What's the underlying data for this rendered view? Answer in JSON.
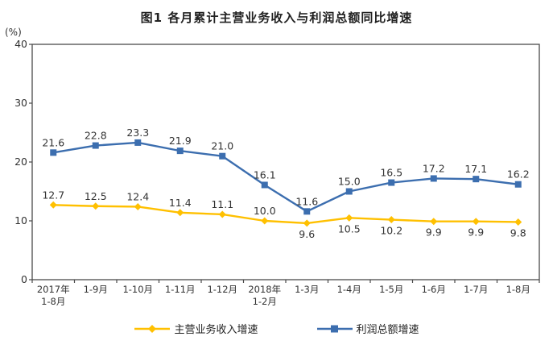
{
  "title": "图1  各月累计主营业务收入与利润总额同比增速",
  "chart_data": {
    "type": "line",
    "title": "图1  各月累计主营业务收入与利润总额同比增速",
    "ylabel": "(%)",
    "xlabel": "",
    "ylim": [
      0,
      40
    ],
    "yticks": [
      0,
      10,
      20,
      30,
      40
    ],
    "grid": false,
    "legend_position": "bottom",
    "axis_color": "#4a4a4a",
    "label_color": "#333333",
    "categories": [
      "2017年\n1-8月",
      "1-9月",
      "1-10月",
      "1-11月",
      "1-12月",
      "2018年\n1-2月",
      "1-3月",
      "1-4月",
      "1-5月",
      "1-6月",
      "1-7月",
      "1-8月"
    ],
    "series": [
      {
        "name": "主营业务收入增速",
        "slug": "revenue-growth",
        "color": "#FFC000",
        "marker": "diamond",
        "values": [
          12.7,
          12.5,
          12.4,
          11.4,
          11.1,
          10.0,
          9.6,
          10.5,
          10.2,
          9.9,
          9.9,
          9.8
        ],
        "label_positions": [
          "above",
          "above",
          "above",
          "above",
          "above",
          "above",
          "below",
          "below",
          "below",
          "below",
          "below",
          "below"
        ]
      },
      {
        "name": "利润总额增速",
        "slug": "profit-growth",
        "color": "#3C6EAF",
        "marker": "square",
        "values": [
          21.6,
          22.8,
          23.3,
          21.9,
          21.0,
          16.1,
          11.6,
          15.0,
          16.5,
          17.2,
          17.1,
          16.2
        ],
        "label_positions": [
          "above",
          "above",
          "above",
          "above",
          "above",
          "above",
          "above",
          "above",
          "above",
          "above",
          "above",
          "above"
        ]
      }
    ]
  }
}
